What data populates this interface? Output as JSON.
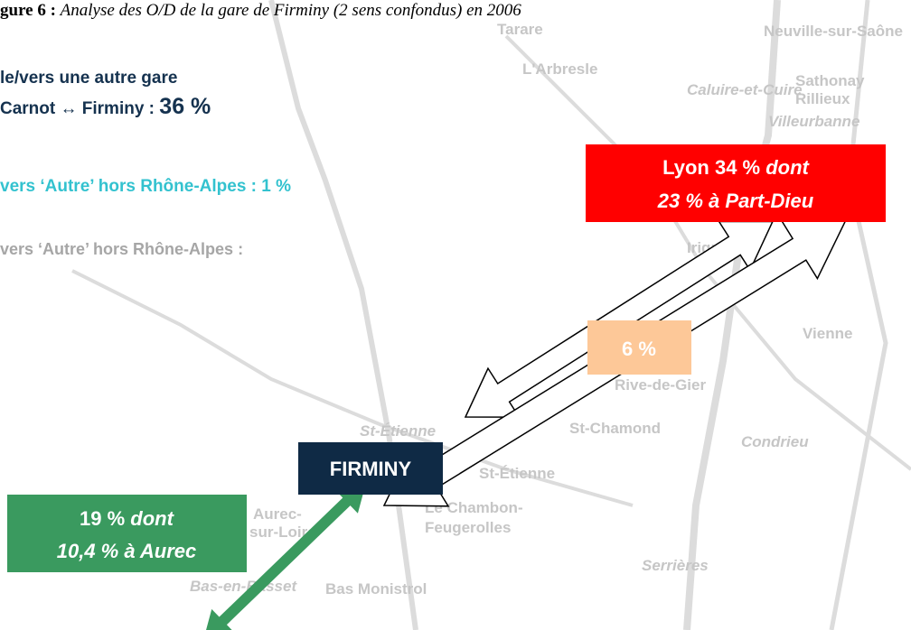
{
  "title": {
    "prefix": "gure 6 :",
    "text": "Analyse des O/D de la gare de Firminy (2 sens confondus) en 2006"
  },
  "legend": {
    "line1": "le/vers une autre gare",
    "line2": "Carnot ↔ Firminy : ",
    "line2_value": "36 %",
    "line3": "vers ‘Autre’ hors Rhône-Alpes : 1 %",
    "line4": "vers ‘Autre’ hors Rhône-Alpes :"
  },
  "boxes": {
    "lyon": {
      "line1": "Lyon 34 % ",
      "line1_em": "dont",
      "line2": "23 % à Part-Dieu"
    },
    "middle": "6 %",
    "firminy": "FIRMINY",
    "aurec": {
      "line1": "19 % ",
      "line1_em": "dont",
      "line2": "10,4 % à Aurec"
    }
  },
  "map_labels": [
    "Tarare",
    "L'Arbresle",
    "Neuville-sur-Saône",
    "Sathonay",
    "Rillieux",
    "Caluire-et-Cuire",
    "Villeurbanne",
    "Irigny",
    "Vienne",
    "Rive-de-Gier",
    "St-Chamond",
    "Condrieu",
    "St-Étienne",
    "St-Étienne",
    "Le Chambon-",
    "Feugerolles",
    "Aurec-",
    "sur-Loire",
    "Bas-en-Basset",
    "Bas Monistrol",
    "Serrières"
  ]
}
